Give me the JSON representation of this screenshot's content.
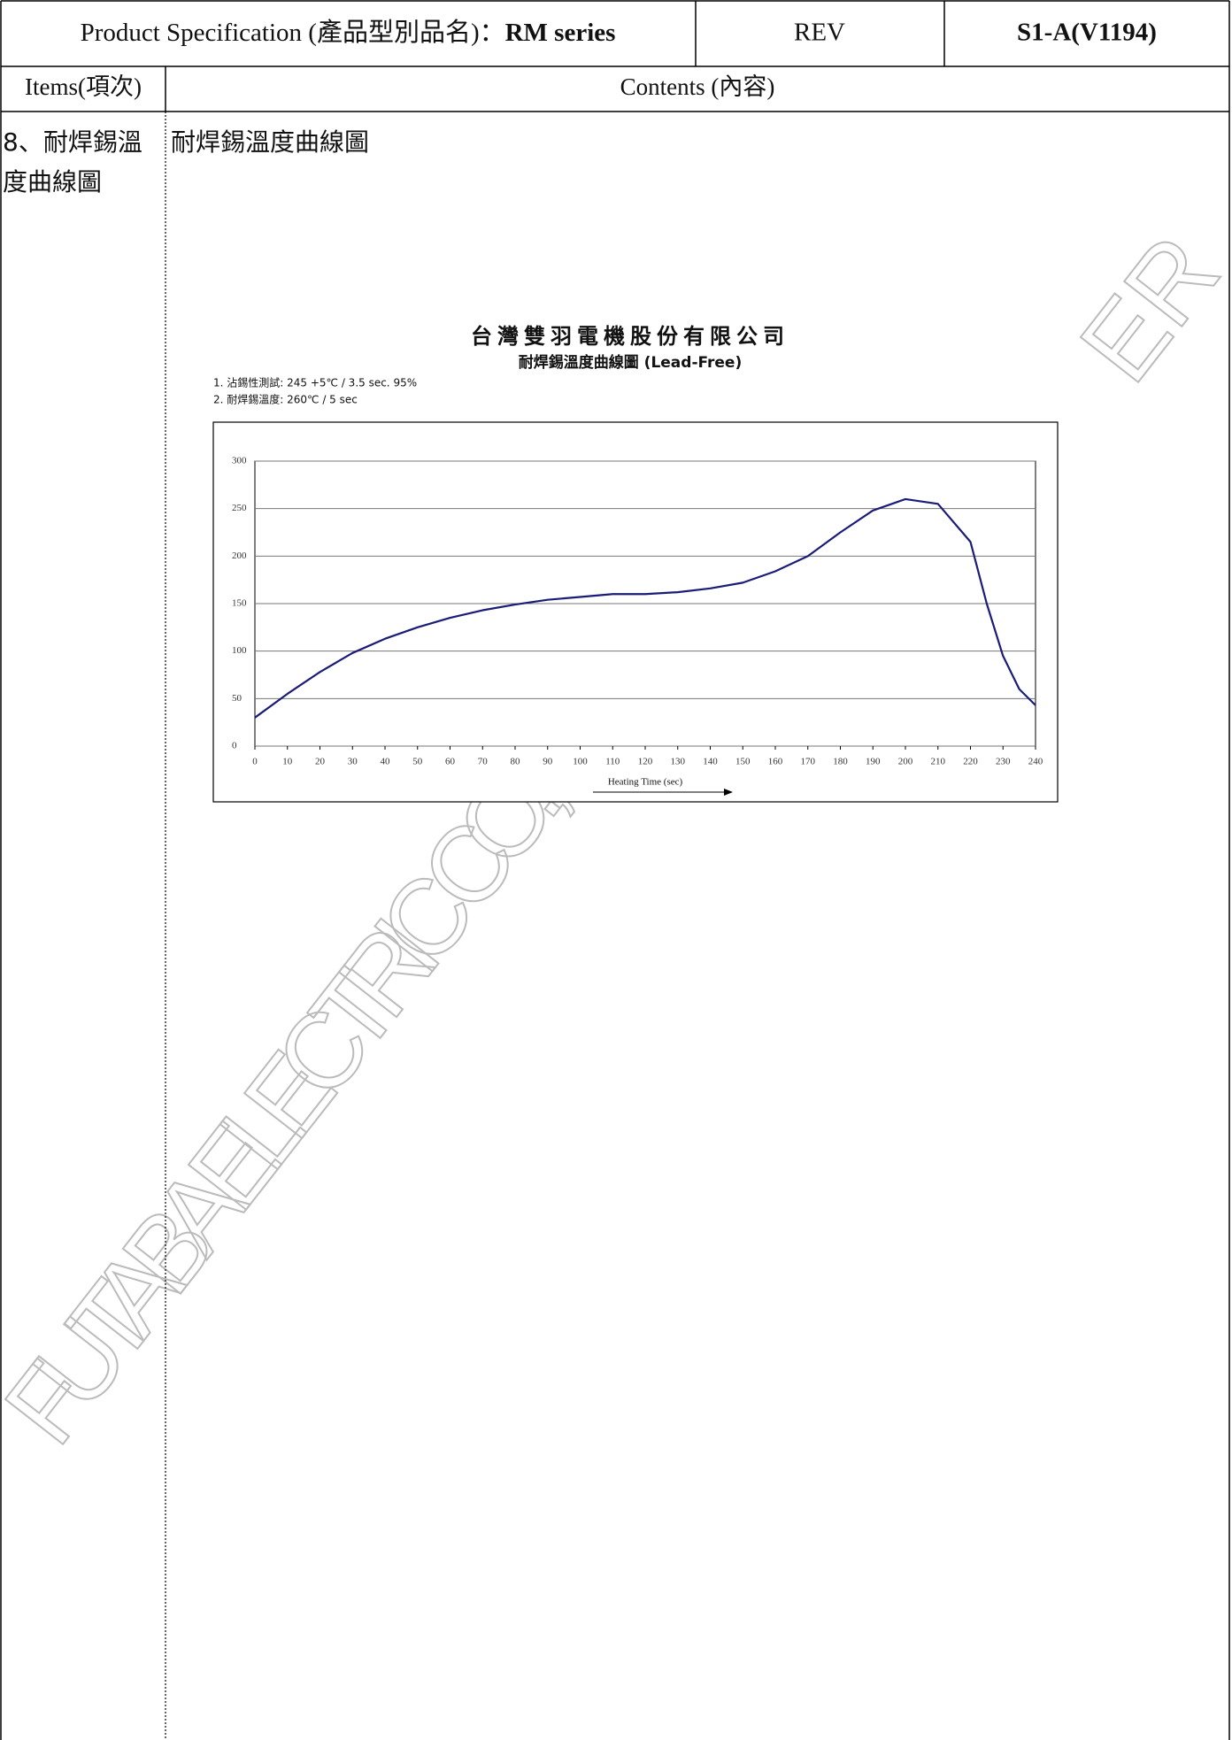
{
  "header": {
    "spec_label": "Product Specification (產品型別品名)：",
    "model": "RM series",
    "rev_label": "REV",
    "rev": "S1-A(V1194)"
  },
  "table": {
    "col_items": "Items(項次)",
    "col_contents": "Contents (內容)",
    "item": [
      "8、耐焊錫溫",
      "度曲線圖"
    ],
    "content_title": "耐焊錫溫度曲線圖"
  },
  "watermark": [
    "FUTABA ELECTRIC CO., L",
    "ER"
  ],
  "chart_data": {
    "type": "line",
    "title": "台灣雙羽電機股份有限公司",
    "subtitle": "耐焊錫溫度曲線圖 (Lead-Free)",
    "notes": [
      "1. 沾錫性測試: 245 +5℃ / 3.5 sec. 95%",
      "2. 耐焊錫溫度: 260℃ / 5 sec"
    ],
    "x_label": "Heating Time  (sec)",
    "x": [
      0,
      10,
      20,
      30,
      40,
      50,
      60,
      70,
      80,
      90,
      100,
      110,
      120,
      130,
      140,
      150,
      160,
      170,
      180,
      190,
      200,
      210,
      220,
      225,
      230,
      235,
      240
    ],
    "series": [
      {
        "color": "#1b1b78",
        "values": [
          30,
          55,
          78,
          98,
          113,
          125,
          135,
          143,
          149,
          154,
          157,
          160,
          160,
          162,
          166,
          172,
          184,
          200,
          225,
          248,
          260,
          255,
          215,
          150,
          95,
          60,
          43
        ]
      }
    ],
    "xlim": [
      0,
      240
    ],
    "xticks": [
      0,
      10,
      20,
      30,
      40,
      50,
      60,
      70,
      80,
      90,
      100,
      110,
      120,
      130,
      140,
      150,
      160,
      170,
      180,
      190,
      200,
      210,
      220,
      230,
      240
    ],
    "ylim": [
      0,
      300
    ],
    "yticks": [
      0,
      50,
      100,
      150,
      200,
      250,
      300
    ],
    "grid": true
  }
}
